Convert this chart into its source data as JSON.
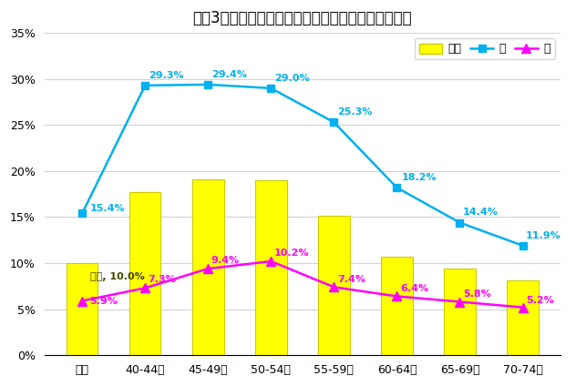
{
  "title": "令和3年度　性別年代別　特定保健指導対象者の割合",
  "categories": [
    "全体",
    "40-44歳",
    "45-49歳",
    "50-54歳",
    "55-59歳",
    "60-64歳",
    "65-69歳",
    "70-74歳"
  ],
  "bar_values": [
    10.0,
    17.7,
    19.1,
    19.0,
    15.1,
    10.7,
    9.4,
    8.1
  ],
  "male_values": [
    15.4,
    29.3,
    29.4,
    29.0,
    25.3,
    18.2,
    14.4,
    11.9
  ],
  "female_values": [
    5.9,
    7.3,
    9.4,
    10.2,
    7.4,
    6.4,
    5.8,
    5.2
  ],
  "bar_color": "#ffff00",
  "bar_edgecolor": "#cccc00",
  "male_color": "#00b0f0",
  "female_color": "#ff00ff",
  "male_marker": "s",
  "female_marker": "^",
  "ylim": [
    0,
    35
  ],
  "yticks": [
    0,
    5,
    10,
    15,
    20,
    25,
    30,
    35
  ],
  "ytick_labels": [
    "0%",
    "5%",
    "10%",
    "15%",
    "20%",
    "25%",
    "30%",
    "35%"
  ],
  "background_color": "#ffffff",
  "grid_color": "#d3d3d3",
  "title_fontsize": 12,
  "label_fontsize": 8,
  "legend_labels": [
    "全体",
    "男",
    "女"
  ],
  "bar_annotation": "全体, 10.0%",
  "male_label_at_zenbu": "15.4%",
  "female_label_at_zenbu": "5.9%",
  "male_annot_texts": [
    "15.4%",
    "29.3%",
    "29.4%",
    "29.0%",
    "25.3%",
    "18.2%",
    "14.4%",
    "11.9%"
  ],
  "female_annot_texts": [
    "5.9%",
    "7.3%",
    "9.4%",
    "10.2%",
    "7.4%",
    "6.4%",
    "5.8%",
    "5.2%"
  ]
}
